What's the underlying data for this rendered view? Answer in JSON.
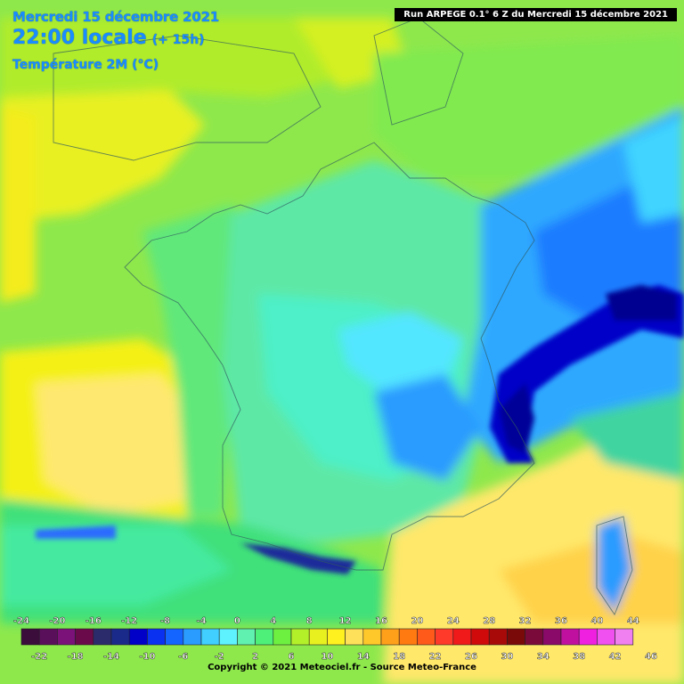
{
  "header": {
    "date": "Mercredi 15 décembre 2021",
    "time": "22:00 locale",
    "lead": "(+ 15h)",
    "variable": "Température 2M (°C)"
  },
  "run_info": "Run ARPEGE 0.1° 6 Z du Mercredi 15 décembre 2021",
  "footer": {
    "copyright": "Copyright © 2021 Meteociel.fr - Source Meteo-France"
  },
  "legend": {
    "labels_top": [
      "-24",
      "-20",
      "-16",
      "-12",
      "-8",
      "-4",
      "0",
      "4",
      "8",
      "12",
      "16",
      "20",
      "24",
      "28",
      "32",
      "36",
      "40",
      "44"
    ],
    "labels_bottom": [
      "-22",
      "-18",
      "-14",
      "-10",
      "-6",
      "-2",
      "2",
      "6",
      "10",
      "14",
      "18",
      "22",
      "26",
      "30",
      "34",
      "38",
      "42",
      "46"
    ],
    "colors": [
      "#3b0d3b",
      "#5a0f5a",
      "#7a127a",
      "#6b0a4a",
      "#2b2b6b",
      "#1a2a8a",
      "#0000c8",
      "#0a30f0",
      "#1464ff",
      "#2a9bff",
      "#40cfff",
      "#5ef2ff",
      "#60f0b0",
      "#4ff07a",
      "#6ef040",
      "#b4f02a",
      "#e8f020",
      "#fff020",
      "#ffe05a",
      "#ffc82a",
      "#ffa01a",
      "#ff7a10",
      "#ff5a1a",
      "#ff3a2a",
      "#f01a1a",
      "#d00a0a",
      "#a80a0a",
      "#7a0a0a",
      "#7a0a3a",
      "#8a0a6a",
      "#c010a0",
      "#f020e0",
      "#f050f0",
      "#f080f0"
    ]
  }
}
